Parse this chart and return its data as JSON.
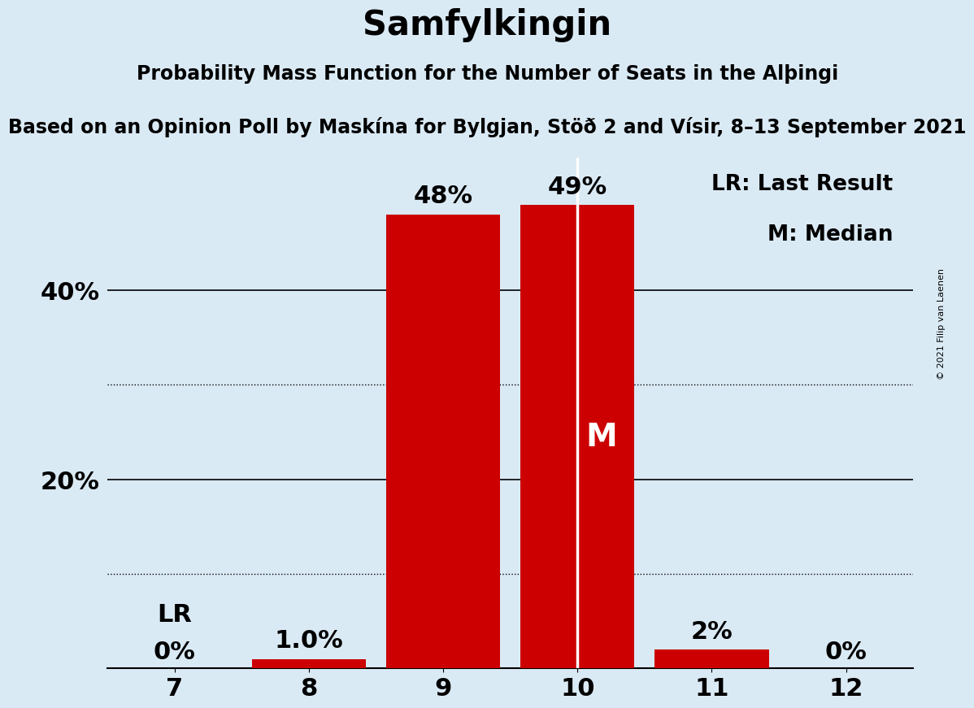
{
  "title": "Samfylkingin",
  "subtitle": "Probability Mass Function for the Number of Seats in the Alþingi",
  "subsubtitle": "Based on an Opinion Poll by Maskína for Bylgjan, Stöð 2 and Vísir, 8–13 September 2021",
  "copyright": "© 2021 Filip van Laenen",
  "seats": [
    7,
    8,
    9,
    10,
    11,
    12
  ],
  "probabilities": [
    0.0,
    1.0,
    48.0,
    49.0,
    2.0,
    0.0
  ],
  "bar_color": "#cc0000",
  "background_color": "#daeaf5",
  "median_seat": 10,
  "median_label": "M",
  "lr_seat": 7,
  "lr_label": "LR",
  "solid_gridlines": [
    20,
    40
  ],
  "dotted_gridlines": [
    10,
    30
  ],
  "legend_lr": "LR: Last Result",
  "legend_m": "M: Median",
  "bar_labels": [
    "0%",
    "1.0%",
    "48%",
    "49%",
    "2%",
    "0%"
  ],
  "yticks": [
    20,
    40
  ],
  "ytick_labels": [
    "20%",
    "40%"
  ],
  "title_fontsize": 30,
  "subtitle_fontsize": 17,
  "subsubtitle_fontsize": 17,
  "axis_fontsize": 22,
  "bar_label_fontsize": 22,
  "legend_fontsize": 19,
  "copyright_fontsize": 8
}
